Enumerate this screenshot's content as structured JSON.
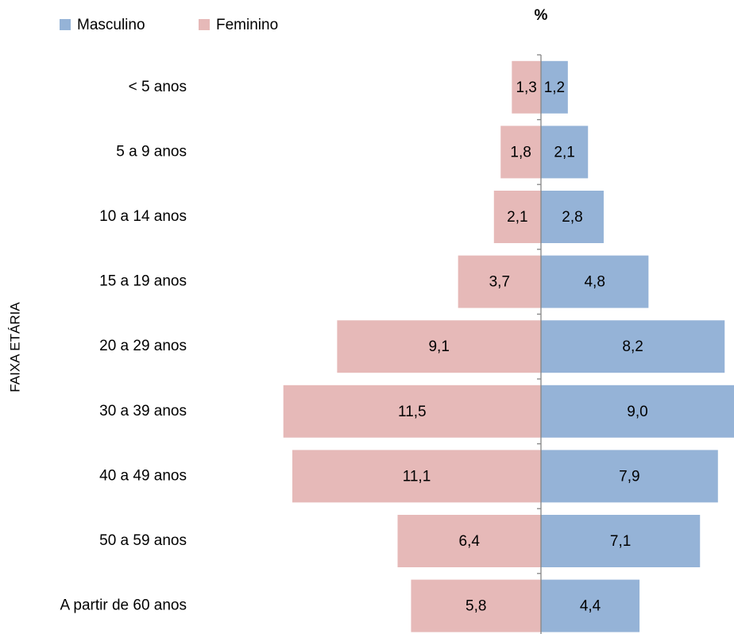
{
  "chart_data": {
    "type": "pyramid",
    "title": "%",
    "y_label": "FAIXA ETÁRIA",
    "categories": [
      "< 5 anos",
      "5 a 9 anos",
      "10 a 14 anos",
      "15 a 19 anos",
      "20 a 29 anos",
      "30 a 39 anos",
      "40 a 49 anos",
      "50 a 59 anos",
      "A partir de 60 anos"
    ],
    "series": [
      {
        "name": "Masculino",
        "color": "#95b3d7",
        "values": [
          1.2,
          2.1,
          2.8,
          4.8,
          8.2,
          9.0,
          7.9,
          7.1,
          4.4
        ],
        "value_labels": [
          "1,2",
          "2,1",
          "2,8",
          "4,8",
          "8,2",
          "9,0",
          "7,9",
          "7,1",
          "4,4"
        ]
      },
      {
        "name": "Feminino",
        "color": "#e6b9b8",
        "values": [
          1.3,
          1.8,
          2.1,
          3.7,
          9.1,
          11.5,
          11.1,
          6.4,
          5.8
        ],
        "value_labels": [
          "1,3",
          "1,8",
          "2,1",
          "3,7",
          "9,1",
          "11,5",
          "11,1",
          "6,4",
          "5,8"
        ]
      }
    ]
  }
}
